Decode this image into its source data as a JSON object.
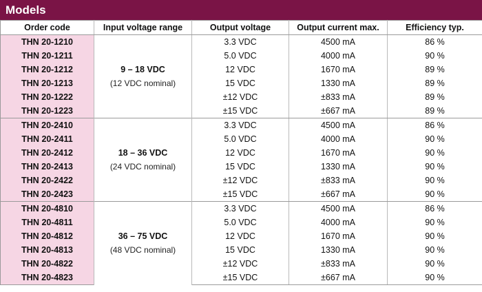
{
  "title": "Models",
  "headers": {
    "order_code": "Order code",
    "input_range": "Input voltage range",
    "output_voltage": "Output voltage",
    "output_current": "Output current max.",
    "efficiency": "Efficiency typ."
  },
  "groups": [
    {
      "range": "9 – 18 VDC",
      "nominal": "(12 VDC nominal)",
      "rows": [
        {
          "code": "THN 20-1210",
          "voltage": "3.3 VDC",
          "current": "4500 mA",
          "efficiency": "86 %"
        },
        {
          "code": "THN 20-1211",
          "voltage": "5.0 VDC",
          "current": "4000 mA",
          "efficiency": "90 %"
        },
        {
          "code": "THN 20-1212",
          "voltage": "12 VDC",
          "current": "1670 mA",
          "efficiency": "89 %"
        },
        {
          "code": "THN 20-1213",
          "voltage": "15 VDC",
          "current": "1330 mA",
          "efficiency": "89 %"
        },
        {
          "code": "THN 20-1222",
          "voltage": "±12 VDC",
          "current": "±833 mA",
          "efficiency": "89 %"
        },
        {
          "code": "THN 20-1223",
          "voltage": "±15 VDC",
          "current": "±667 mA",
          "efficiency": "89 %"
        }
      ]
    },
    {
      "range": "18 – 36 VDC",
      "nominal": "(24 VDC nominal)",
      "rows": [
        {
          "code": "THN 20-2410",
          "voltage": "3.3 VDC",
          "current": "4500 mA",
          "efficiency": "86 %"
        },
        {
          "code": "THN 20-2411",
          "voltage": "5.0 VDC",
          "current": "4000 mA",
          "efficiency": "90 %"
        },
        {
          "code": "THN 20-2412",
          "voltage": "12 VDC",
          "current": "1670 mA",
          "efficiency": "90 %"
        },
        {
          "code": "THN 20-2413",
          "voltage": "15 VDC",
          "current": "1330 mA",
          "efficiency": "90 %"
        },
        {
          "code": "THN 20-2422",
          "voltage": "±12 VDC",
          "current": "±833 mA",
          "efficiency": "90 %"
        },
        {
          "code": "THN 20-2423",
          "voltage": "±15 VDC",
          "current": "±667 mA",
          "efficiency": "90 %"
        }
      ]
    },
    {
      "range": "36 – 75 VDC",
      "nominal": "(48 VDC nominal)",
      "rows": [
        {
          "code": "THN 20-4810",
          "voltage": "3.3 VDC",
          "current": "4500 mA",
          "efficiency": "86 %"
        },
        {
          "code": "THN 20-4811",
          "voltage": "5.0 VDC",
          "current": "4000 mA",
          "efficiency": "90 %"
        },
        {
          "code": "THN 20-4812",
          "voltage": "12 VDC",
          "current": "1670 mA",
          "efficiency": "90 %"
        },
        {
          "code": "THN 20-4813",
          "voltage": "15 VDC",
          "current": "1330 mA",
          "efficiency": "90 %"
        },
        {
          "code": "THN 20-4822",
          "voltage": "±12 VDC",
          "current": "±833 mA",
          "efficiency": "90 %"
        },
        {
          "code": "THN 20-4823",
          "voltage": "±15 VDC",
          "current": "±667 mA",
          "efficiency": "90 %"
        }
      ]
    }
  ]
}
